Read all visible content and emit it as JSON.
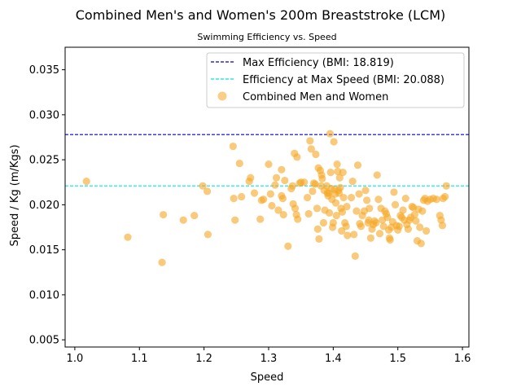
{
  "chart_data": {
    "type": "scatter",
    "title": "Combined Men's and Women's 200m Breaststroke (LCM)",
    "subtitle": "Swimming Efficiency vs. Speed",
    "xlabel": "Speed",
    "ylabel": "Speed / Kg (m/Kgs)",
    "xlim": [
      0.985,
      1.61
    ],
    "ylim": [
      0.0042,
      0.0375
    ],
    "x_ticks": [
      1.0,
      1.1,
      1.2,
      1.3,
      1.4,
      1.5,
      1.6
    ],
    "x_tick_labels": [
      "1.0",
      "1.1",
      "1.2",
      "1.3",
      "1.4",
      "1.5",
      "1.6"
    ],
    "y_ticks": [
      0.005,
      0.01,
      0.015,
      0.02,
      0.025,
      0.03,
      0.035
    ],
    "y_tick_labels": [
      "0.005",
      "0.010",
      "0.015",
      "0.020",
      "0.025",
      "0.030",
      "0.035"
    ],
    "grid": false,
    "legend_position": "top-right",
    "reference_lines": [
      {
        "name": "Max Efficiency (BMI: 18.819)",
        "y": 0.0278,
        "color": "#0000cc",
        "style": "dashed"
      },
      {
        "name": "Efficiency at Max Speed (BMI: 20.088)",
        "y": 0.0221,
        "color": "#00e5e5",
        "style": "dashed"
      }
    ],
    "series": [
      {
        "name": "Combined Men and Women",
        "color": "#f5a623",
        "points": [
          [
            1.018,
            0.0226
          ],
          [
            1.082,
            0.0164
          ],
          [
            1.135,
            0.0136
          ],
          [
            1.137,
            0.0189
          ],
          [
            1.168,
            0.0183
          ],
          [
            1.185,
            0.0188
          ],
          [
            1.198,
            0.0221
          ],
          [
            1.205,
            0.0215
          ],
          [
            1.206,
            0.0167
          ],
          [
            1.245,
            0.0265
          ],
          [
            1.246,
            0.0207
          ],
          [
            1.248,
            0.0183
          ],
          [
            1.255,
            0.0246
          ],
          [
            1.258,
            0.0209
          ],
          [
            1.27,
            0.0226
          ],
          [
            1.272,
            0.023
          ],
          [
            1.278,
            0.0213
          ],
          [
            1.287,
            0.0184
          ],
          [
            1.289,
            0.0205
          ],
          [
            1.292,
            0.0206
          ],
          [
            1.3,
            0.0245
          ],
          [
            1.303,
            0.0212
          ],
          [
            1.305,
            0.0199
          ],
          [
            1.31,
            0.0222
          ],
          [
            1.312,
            0.023
          ],
          [
            1.315,
            0.0194
          ],
          [
            1.32,
            0.0239
          ],
          [
            1.32,
            0.021
          ],
          [
            1.322,
            0.0207
          ],
          [
            1.323,
            0.0189
          ],
          [
            1.325,
            0.0227
          ],
          [
            1.33,
            0.0154
          ],
          [
            1.335,
            0.0218
          ],
          [
            1.337,
            0.0221
          ],
          [
            1.338,
            0.0201
          ],
          [
            1.34,
            0.0257
          ],
          [
            1.341,
            0.0196
          ],
          [
            1.343,
            0.0189
          ],
          [
            1.344,
            0.0253
          ],
          [
            1.345,
            0.0184
          ],
          [
            1.348,
            0.0224
          ],
          [
            1.35,
            0.0225
          ],
          [
            1.355,
            0.0225
          ],
          [
            1.36,
            0.0208
          ],
          [
            1.362,
            0.019
          ],
          [
            1.364,
            0.0271
          ],
          [
            1.366,
            0.0262
          ],
          [
            1.368,
            0.0215
          ],
          [
            1.37,
            0.0224
          ],
          [
            1.372,
            0.0223
          ],
          [
            1.373,
            0.0256
          ],
          [
            1.375,
            0.0196
          ],
          [
            1.376,
            0.0173
          ],
          [
            1.377,
            0.0241
          ],
          [
            1.378,
            0.0162
          ],
          [
            1.38,
            0.0238
          ],
          [
            1.381,
            0.0221
          ],
          [
            1.382,
            0.0233
          ],
          [
            1.383,
            0.0229
          ],
          [
            1.385,
            0.018
          ],
          [
            1.386,
            0.0216
          ],
          [
            1.387,
            0.0194
          ],
          [
            1.39,
            0.0221
          ],
          [
            1.391,
            0.0213
          ],
          [
            1.392,
            0.021
          ],
          [
            1.393,
            0.0213
          ],
          [
            1.394,
            0.0191
          ],
          [
            1.395,
            0.0279
          ],
          [
            1.396,
            0.0236
          ],
          [
            1.397,
            0.0218
          ],
          [
            1.398,
            0.0206
          ],
          [
            1.399,
            0.0175
          ],
          [
            1.4,
            0.018
          ],
          [
            1.401,
            0.027
          ],
          [
            1.402,
            0.0217
          ],
          [
            1.403,
            0.0212
          ],
          [
            1.404,
            0.0202
          ],
          [
            1.405,
            0.0188
          ],
          [
            1.406,
            0.0245
          ],
          [
            1.407,
            0.0237
          ],
          [
            1.408,
            0.0216
          ],
          [
            1.409,
            0.0213
          ],
          [
            1.41,
            0.023
          ],
          [
            1.411,
            0.0219
          ],
          [
            1.412,
            0.0196
          ],
          [
            1.413,
            0.0171
          ],
          [
            1.414,
            0.0192
          ],
          [
            1.415,
            0.0236
          ],
          [
            1.416,
            0.0208
          ],
          [
            1.418,
            0.018
          ],
          [
            1.42,
            0.0176
          ],
          [
            1.421,
            0.0198
          ],
          [
            1.422,
            0.0166
          ],
          [
            1.428,
            0.0208
          ],
          [
            1.43,
            0.0226
          ],
          [
            1.432,
            0.0167
          ],
          [
            1.434,
            0.0143
          ],
          [
            1.436,
            0.0193
          ],
          [
            1.438,
            0.0244
          ],
          [
            1.44,
            0.0212
          ],
          [
            1.441,
            0.0179
          ],
          [
            1.443,
            0.0176
          ],
          [
            1.445,
            0.0188
          ],
          [
            1.448,
            0.0193
          ],
          [
            1.45,
            0.0216
          ],
          [
            1.452,
            0.0205
          ],
          [
            1.454,
            0.018
          ],
          [
            1.455,
            0.0183
          ],
          [
            1.456,
            0.0196
          ],
          [
            1.458,
            0.0163
          ],
          [
            1.46,
            0.0173
          ],
          [
            1.462,
            0.0178
          ],
          [
            1.464,
            0.0182
          ],
          [
            1.466,
            0.018
          ],
          [
            1.468,
            0.0233
          ],
          [
            1.47,
            0.0206
          ],
          [
            1.472,
            0.0168
          ],
          [
            1.474,
            0.0196
          ],
          [
            1.476,
            0.0183
          ],
          [
            1.478,
            0.0176
          ],
          [
            1.48,
            0.0193
          ],
          [
            1.482,
            0.019
          ],
          [
            1.484,
            0.0186
          ],
          [
            1.486,
            0.0172
          ],
          [
            1.487,
            0.0163
          ],
          [
            1.488,
            0.0161
          ],
          [
            1.49,
            0.0175
          ],
          [
            1.492,
            0.0181
          ],
          [
            1.494,
            0.0214
          ],
          [
            1.496,
            0.02
          ],
          [
            1.498,
            0.0177
          ],
          [
            1.5,
            0.0172
          ],
          [
            1.502,
            0.0176
          ],
          [
            1.504,
            0.0188
          ],
          [
            1.506,
            0.0186
          ],
          [
            1.508,
            0.0194
          ],
          [
            1.51,
            0.0183
          ],
          [
            1.512,
            0.0207
          ],
          [
            1.514,
            0.0178
          ],
          [
            1.516,
            0.0173
          ],
          [
            1.518,
            0.0183
          ],
          [
            1.52,
            0.0186
          ],
          [
            1.522,
            0.0198
          ],
          [
            1.524,
            0.0197
          ],
          [
            1.526,
            0.0189
          ],
          [
            1.528,
            0.0182
          ],
          [
            1.53,
            0.016
          ],
          [
            1.532,
            0.0195
          ],
          [
            1.534,
            0.0175
          ],
          [
            1.536,
            0.0157
          ],
          [
            1.538,
            0.0193
          ],
          [
            1.54,
            0.0205
          ],
          [
            1.542,
            0.0207
          ],
          [
            1.544,
            0.0171
          ],
          [
            1.546,
            0.0204
          ],
          [
            1.55,
            0.0206
          ],
          [
            1.555,
            0.0207
          ],
          [
            1.56,
            0.0206
          ],
          [
            1.565,
            0.0188
          ],
          [
            1.567,
            0.0183
          ],
          [
            1.569,
            0.0177
          ],
          [
            1.57,
            0.0207
          ],
          [
            1.573,
            0.0209
          ],
          [
            1.575,
            0.0221
          ]
        ]
      }
    ]
  }
}
